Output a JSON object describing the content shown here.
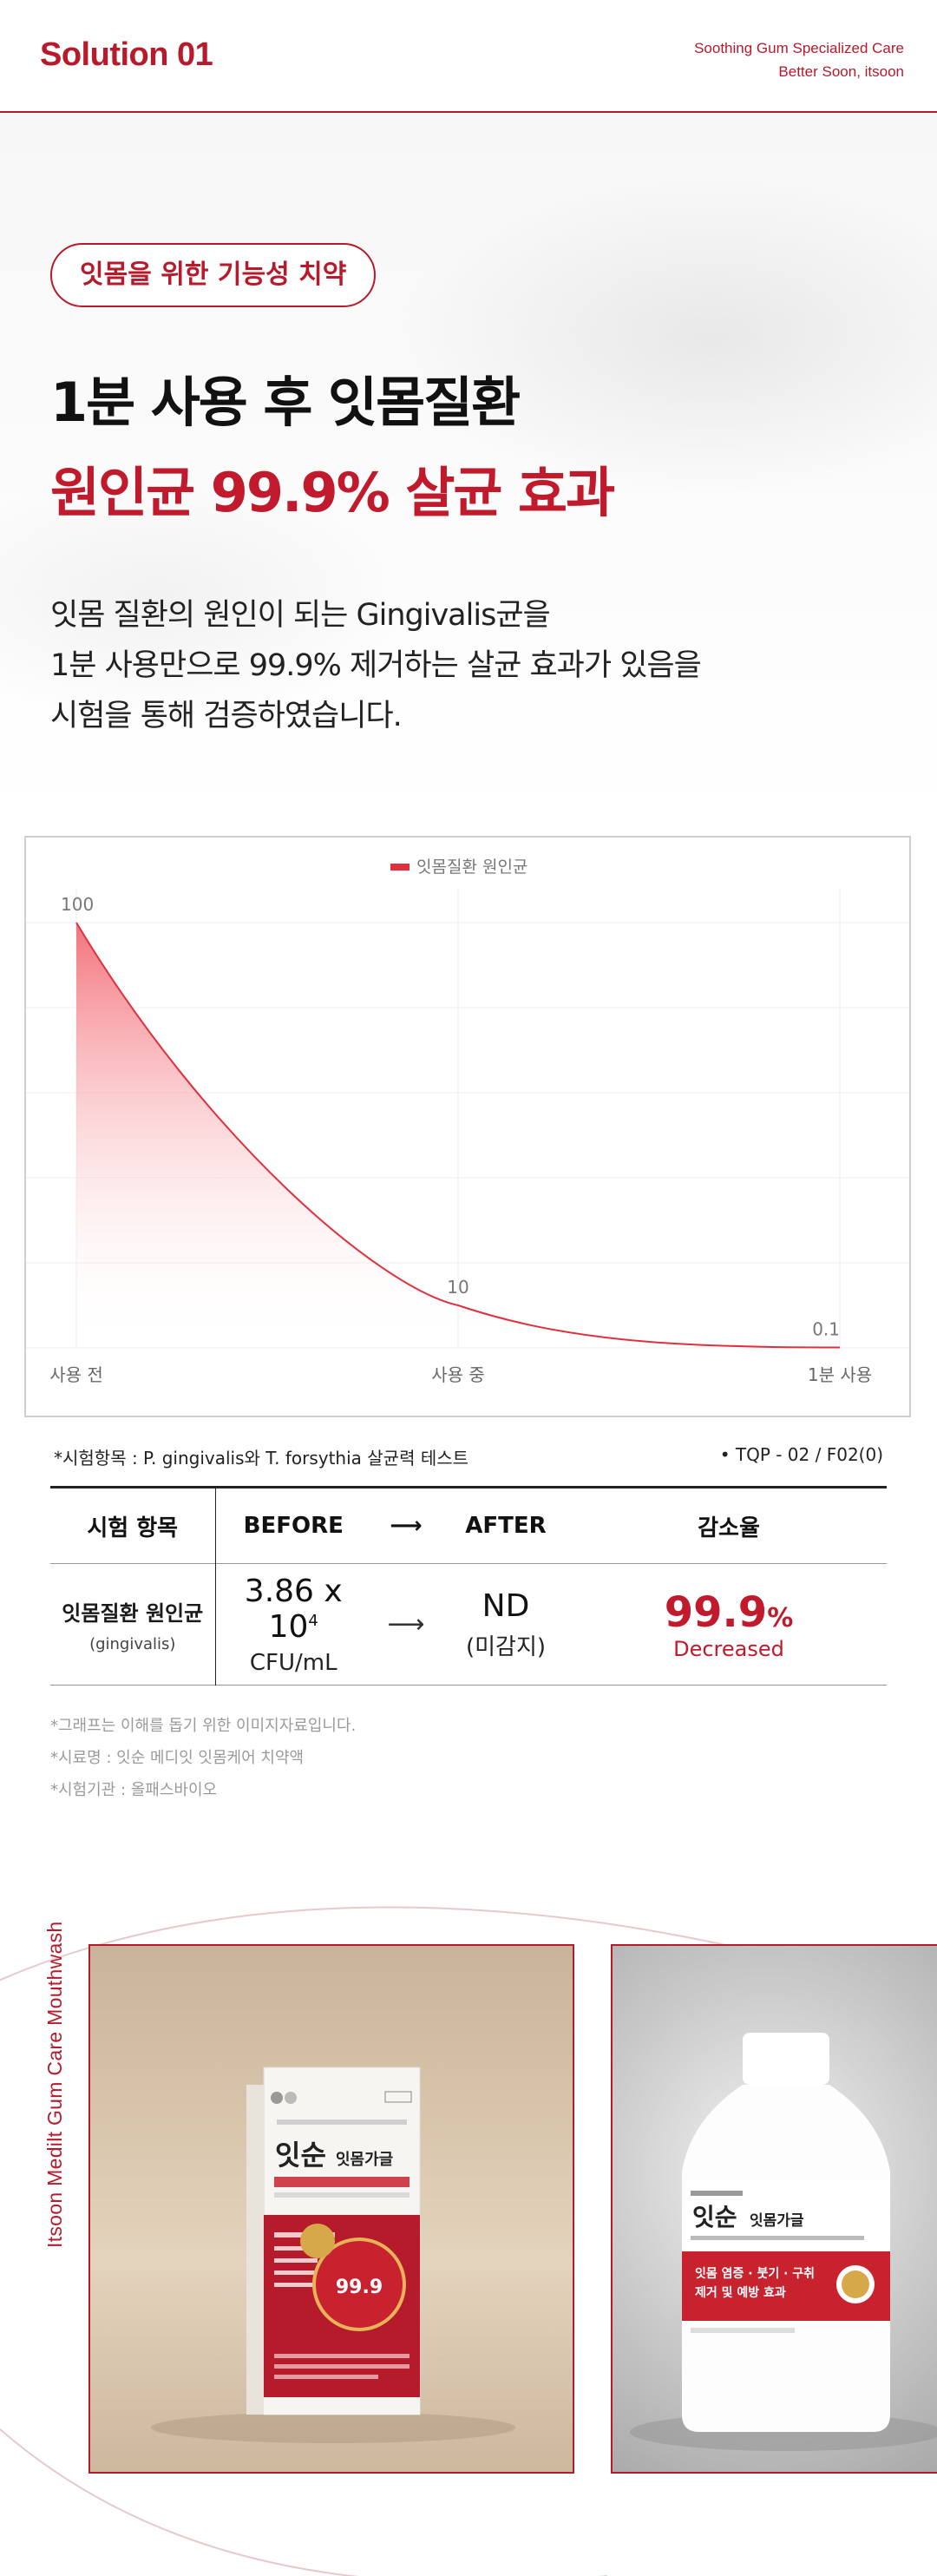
{
  "header": {
    "title": "Solution 01",
    "subtitle_line1": "Soothing Gum Specialized Care",
    "subtitle_line2": "Better Soon, itsoon"
  },
  "hero": {
    "pill": "잇몸을 위한 기능성 치약",
    "headline_line1": "1분 사용 후 잇몸질환",
    "headline_line2": "원인균 99.9% 살균 효과",
    "desc_line1": "잇몸 질환의 원인이 되는 Gingivalis균을",
    "desc_line2": "1분 사용만으로 99.9% 제거하는 살균 효과가 있음을",
    "desc_line3": "시험을 통해 검증하였습니다."
  },
  "chart_data": {
    "type": "area",
    "series": [
      {
        "name": "잇몸질환 원인균",
        "values": [
          100,
          10,
          0.1
        ]
      }
    ],
    "categories": [
      "사용 전",
      "사용 중",
      "1분 사용"
    ],
    "data_labels": [
      "100",
      "10",
      "0.1"
    ],
    "ylim": [
      0,
      100
    ],
    "legend_position": "top-center",
    "grid": true,
    "colors": {
      "line": "#e0303e",
      "fill_top": "#f26a74"
    }
  },
  "test": {
    "info": "*시험항목 : P. gingivalis와 T. forsythia 살균력 테스트",
    "code": "• TQP - 02 / F02(0)",
    "headers": {
      "item": "시험 항목",
      "before": "BEFORE",
      "after": "AFTER",
      "reduction": "감소율"
    },
    "row": {
      "item_name": "잇몸질환 원인균",
      "item_sub": "(gingivalis)",
      "before_value": "3.86 x 10",
      "before_exp": "4",
      "before_unit": "CFU/mL",
      "after_value": "ND",
      "after_sub": "(미감지)",
      "reduction_value": "99.9",
      "reduction_unit": "%",
      "reduction_sub": "Decreased"
    },
    "arrow": "⟶"
  },
  "notes": [
    "*그래프는 이해를 돕기 위한 이미지자료입니다.",
    "*시료명 : 잇순 메디잇 잇몸케어 치약액",
    "*시험기관 : 올패스바이오"
  ],
  "products": {
    "side_text": "Itsoon Medilt Gum Care Mouthwash",
    "box_brand": "잇순",
    "box_sub": "잇몸가글",
    "box_badge": "99.9",
    "bottle_brand": "잇순",
    "bottle_sub": "잇몸가글",
    "bottle_banner1": "잇몸 염증 · 붓기 · 구취",
    "bottle_banner2": "제거 및 예방 효과"
  },
  "colors": {
    "accent": "#b71a2b",
    "accent_bright": "#c01a2c"
  }
}
